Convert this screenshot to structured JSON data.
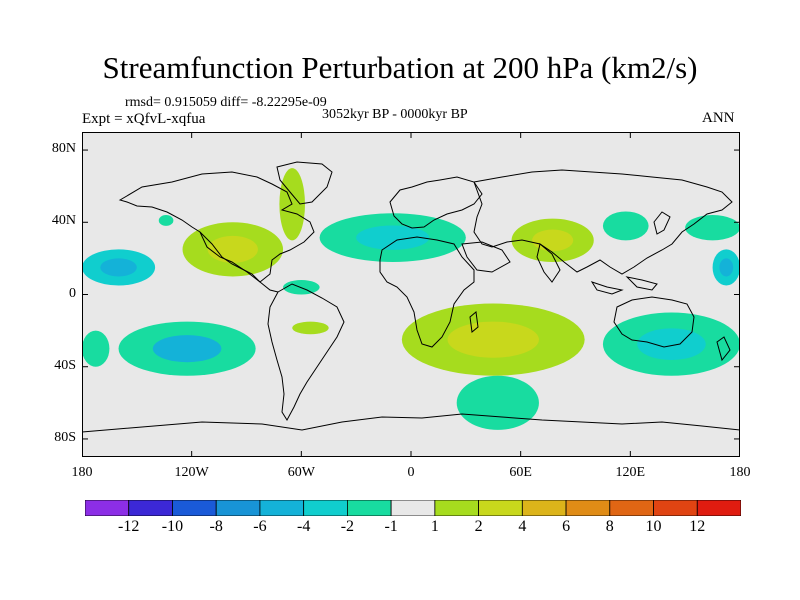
{
  "title": "Streamfunction Perturbation at 200 hPa (km2/s)",
  "stats": "rmsd= 0.915059  diff= -8.22295e-09",
  "period": "3052kyr BP - 0000kyr BP",
  "experiment": "Expt = xQfvL-xqfua",
  "season": "ANN",
  "colors": {
    "ocean_land_background": "#e8e8e8",
    "coastline": "#000000",
    "frame": "#000000"
  },
  "chart_data": {
    "type": "heatmap",
    "projection": "cylindrical equidistant",
    "xlim": [
      -180,
      180
    ],
    "ylim": [
      -90,
      90
    ],
    "x_ticks": [
      {
        "value": -180,
        "label": "180"
      },
      {
        "value": -120,
        "label": "120W"
      },
      {
        "value": -60,
        "label": "60W"
      },
      {
        "value": 0,
        "label": "0"
      },
      {
        "value": 60,
        "label": "60E"
      },
      {
        "value": 120,
        "label": "120E"
      },
      {
        "value": 180,
        "label": "180"
      }
    ],
    "y_ticks": [
      {
        "value": 80,
        "label": "80N"
      },
      {
        "value": 40,
        "label": "40N"
      },
      {
        "value": 0,
        "label": "0"
      },
      {
        "value": -40,
        "label": "40S"
      },
      {
        "value": -80,
        "label": "80S"
      }
    ],
    "colorbar": {
      "labels": [
        "-12",
        "-10",
        "-8",
        "-6",
        "-4",
        "-2",
        "-1",
        "1",
        "2",
        "4",
        "6",
        "8",
        "10",
        "12"
      ],
      "colors": [
        "#8c2ee6",
        "#3c28d6",
        "#1a5ad8",
        "#1894d6",
        "#14b2d8",
        "#10cece",
        "#18dca0",
        "#e8e8e8",
        "#a6dc1e",
        "#c8d81c",
        "#dcb41a",
        "#e08c16",
        "#e06614",
        "#e04412",
        "#e01c10"
      ]
    },
    "anomaly_regions": [
      {
        "name": "eq-pacific-west",
        "lon": [
          -180,
          -140
        ],
        "lat": [
          5,
          25
        ],
        "level": "-2",
        "core_level": "-4"
      },
      {
        "name": "eq-pacific-east",
        "lon": [
          165,
          180
        ],
        "lat": [
          5,
          25
        ],
        "level": "-2",
        "core_level": "-4"
      },
      {
        "name": "mexico-gulf",
        "lon": [
          -125,
          -70
        ],
        "lat": [
          10,
          40
        ],
        "level": "1",
        "core_level": "2"
      },
      {
        "name": "north-america-east",
        "lon": [
          -72,
          -58
        ],
        "lat": [
          30,
          70
        ],
        "level": "1"
      },
      {
        "name": "north-pacific-east",
        "lon": [
          -138,
          -130
        ],
        "lat": [
          38,
          44
        ],
        "level": "-1"
      },
      {
        "name": "north-atlantic",
        "lon": [
          -50,
          30
        ],
        "lat": [
          18,
          45
        ],
        "level": "-1",
        "core_level": "-2"
      },
      {
        "name": "india-asia",
        "lon": [
          55,
          100
        ],
        "lat": [
          18,
          42
        ],
        "level": "1",
        "core_level": "2"
      },
      {
        "name": "china-east",
        "lon": [
          105,
          130
        ],
        "lat": [
          30,
          46
        ],
        "level": "-1"
      },
      {
        "name": "nw-pacific",
        "lon": [
          150,
          180
        ],
        "lat": [
          30,
          44
        ],
        "level": "-1"
      },
      {
        "name": "caribbean-south",
        "lon": [
          -70,
          -50
        ],
        "lat": [
          0,
          8
        ],
        "level": "-1"
      },
      {
        "name": "south-pacific",
        "lon": [
          -160,
          -85
        ],
        "lat": [
          -45,
          -15
        ],
        "level": "-1",
        "core_level": "-4"
      },
      {
        "name": "south-atlantic",
        "lon": [
          -65,
          -45
        ],
        "lat": [
          -22,
          -15
        ],
        "level": "1"
      },
      {
        "name": "s-pacific-west",
        "lon": [
          -180,
          -165
        ],
        "lat": [
          -40,
          -20
        ],
        "level": "-1"
      },
      {
        "name": "southern-africa-indian",
        "lon": [
          -5,
          95
        ],
        "lat": [
          -45,
          -5
        ],
        "level": "1",
        "core_level": "2"
      },
      {
        "name": "southern-ocean",
        "lon": [
          25,
          70
        ],
        "lat": [
          -75,
          -45
        ],
        "level": "-1"
      },
      {
        "name": "australia",
        "lon": [
          105,
          180
        ],
        "lat": [
          -45,
          -10
        ],
        "level": "-1",
        "core_level": "-2"
      }
    ]
  }
}
